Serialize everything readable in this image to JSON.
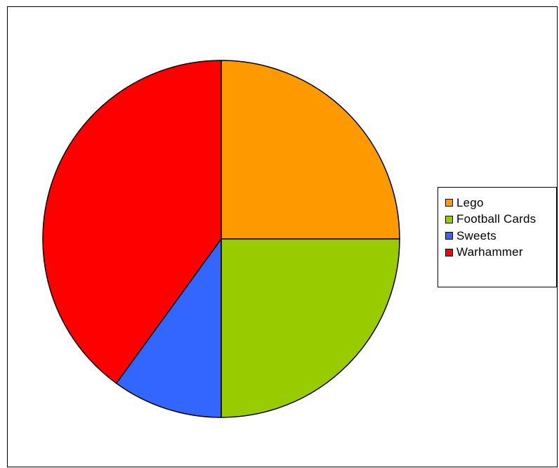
{
  "chart_data": {
    "type": "pie",
    "title": "",
    "start_angle": "12 o'clock",
    "direction": "clockwise",
    "legend_position": "right",
    "slices": [
      {
        "label": "Lego",
        "value": 25,
        "color": "#ff9900"
      },
      {
        "label": "Football Cards",
        "value": 25,
        "color": "#99cc00"
      },
      {
        "label": "Sweets",
        "value": 10,
        "color": "#3366ff"
      },
      {
        "label": "Warhammer",
        "value": 40,
        "color": "#ff0000"
      }
    ]
  }
}
